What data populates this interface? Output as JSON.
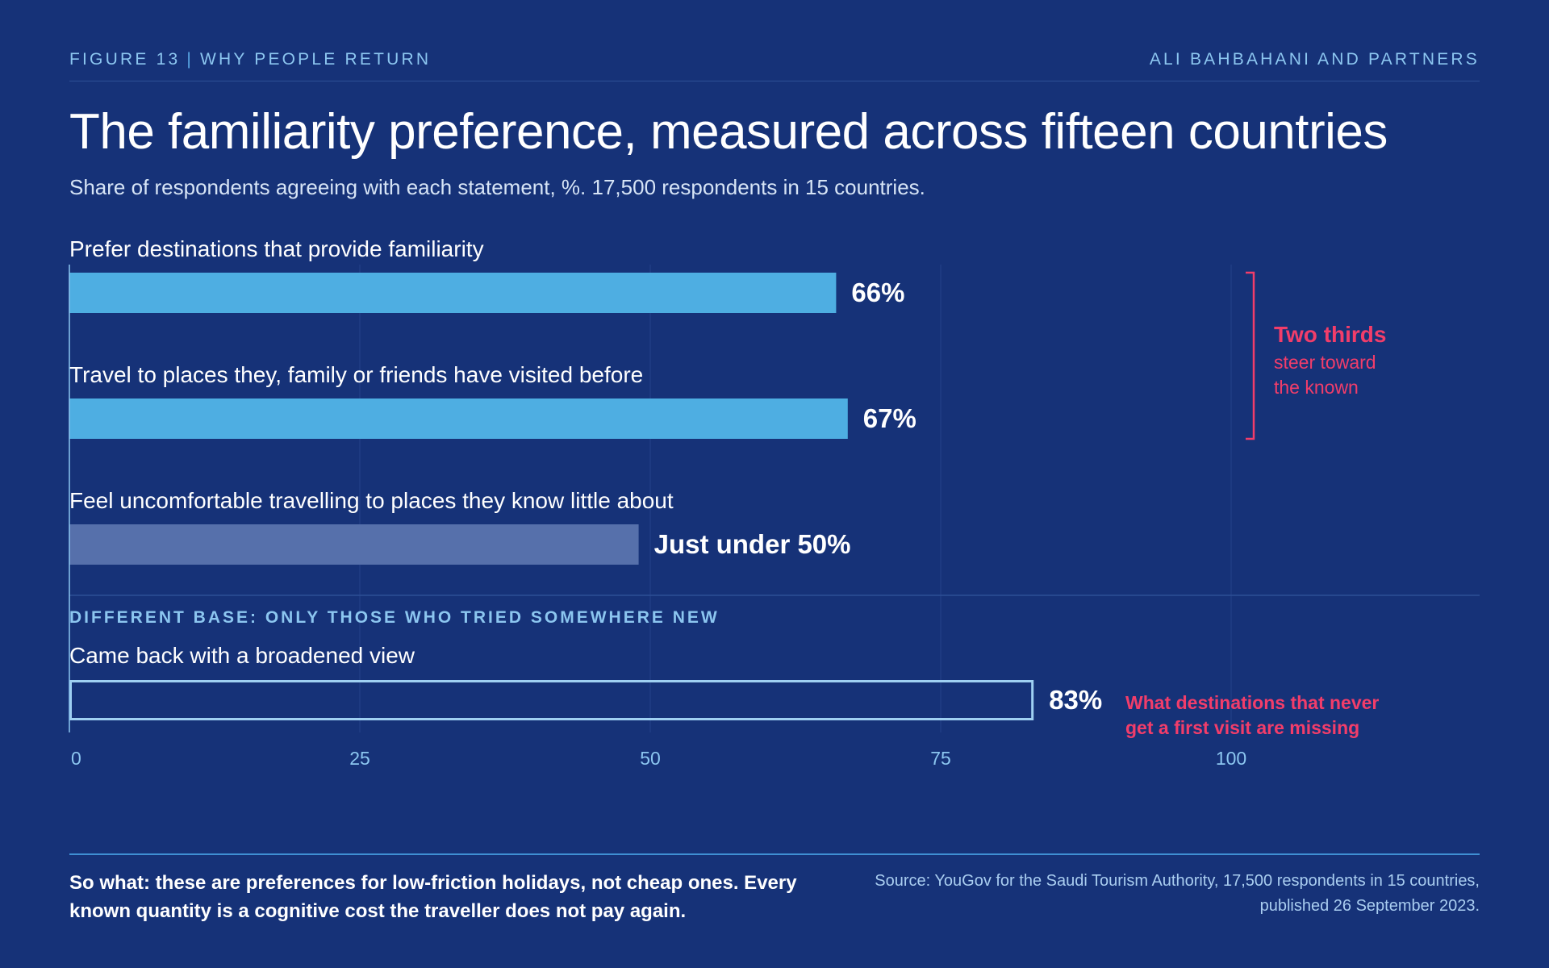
{
  "header": {
    "figure": "FIGURE 13",
    "separator": "|",
    "section": "WHY PEOPLE RETURN",
    "publisher": "ALI BAHBAHANI AND PARTNERS"
  },
  "title": "The familiarity preference, measured across fifteen countries",
  "subtitle": "Share of respondents agreeing with each statement, %. 17,500 respondents in 15 countries.",
  "chart_data": {
    "type": "bar",
    "orientation": "horizontal",
    "xlim": [
      0,
      100
    ],
    "xticks": [
      0,
      25,
      50,
      75,
      100
    ],
    "grid": true,
    "bars": [
      {
        "label": "Prefer destinations that provide familiarity",
        "value": 66,
        "value_label": "66%",
        "color": "#4eaee2",
        "style": "solid"
      },
      {
        "label": "Travel to places they, family or friends have visited before",
        "value": 67,
        "value_label": "67%",
        "color": "#4eaee2",
        "style": "solid"
      },
      {
        "label": "Feel uncomfortable travelling to places they know little about",
        "value": 49,
        "value_label": "Just under 50%",
        "color": "#5670ab",
        "style": "solid"
      },
      {
        "label": "Came back with a broadened view",
        "value": 83,
        "value_label": "83%",
        "color": "#9fd0f2",
        "style": "outline"
      }
    ],
    "section_label": "DIFFERENT BASE: ONLY THOSE WHO TRIED SOMEWHERE NEW",
    "annotations": {
      "bracket": {
        "heading": "Two thirds",
        "lines": [
          "steer toward",
          "the known"
        ],
        "color": "#f23d6a"
      },
      "note": {
        "lines": [
          "What destinations that never",
          "get a first visit are missing"
        ],
        "color": "#f23d6a"
      }
    }
  },
  "footer": {
    "so_what": "So what: these are preferences for low-friction holidays, not cheap ones. Every known quantity is a cognitive cost the traveller does not pay again.",
    "source": "Source: YouGov for the Saudi Tourism Authority, 17,500 respondents in 15 countries, published 26 September 2023."
  },
  "colors": {
    "background": "#163278",
    "accent": "#f23d6a",
    "bar_primary": "#4eaee2",
    "bar_muted": "#5670ab",
    "tick": "#8cc6f0"
  }
}
